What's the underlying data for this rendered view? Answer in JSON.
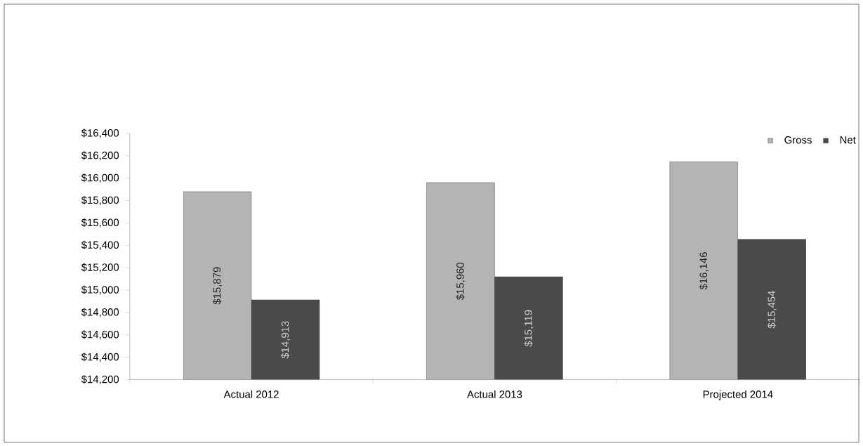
{
  "chart_data": {
    "type": "bar",
    "categories": [
      "Actual 2012",
      "Actual 2013",
      "Projected 2014"
    ],
    "series": [
      {
        "name": "Gross",
        "color": "#b4b4b4",
        "values": [
          15879,
          15960,
          16146
        ],
        "value_labels": [
          "$15,879",
          "$15,960",
          "$16,146"
        ]
      },
      {
        "name": "Net",
        "color": "#4a4a4a",
        "values": [
          14913,
          15119,
          15454
        ],
        "value_labels": [
          "$14,913",
          "$15,119",
          "$15,454"
        ]
      }
    ],
    "ylim": [
      14200,
      16400
    ],
    "yticks": [
      {
        "value": 14200,
        "label": "$14,200"
      },
      {
        "value": 14400,
        "label": "$14,400"
      },
      {
        "value": 14600,
        "label": "$14,600"
      },
      {
        "value": 14800,
        "label": "$14,800"
      },
      {
        "value": 15000,
        "label": "$15,000"
      },
      {
        "value": 15200,
        "label": "$15,200"
      },
      {
        "value": 15400,
        "label": "$15,400"
      },
      {
        "value": 15600,
        "label": "$15,600"
      },
      {
        "value": 15800,
        "label": "$15,800"
      },
      {
        "value": 16000,
        "label": "$16,000"
      },
      {
        "value": 16200,
        "label": "$16,200"
      },
      {
        "value": 16400,
        "label": "$16,400"
      }
    ],
    "legend": "top right",
    "grid": false
  }
}
